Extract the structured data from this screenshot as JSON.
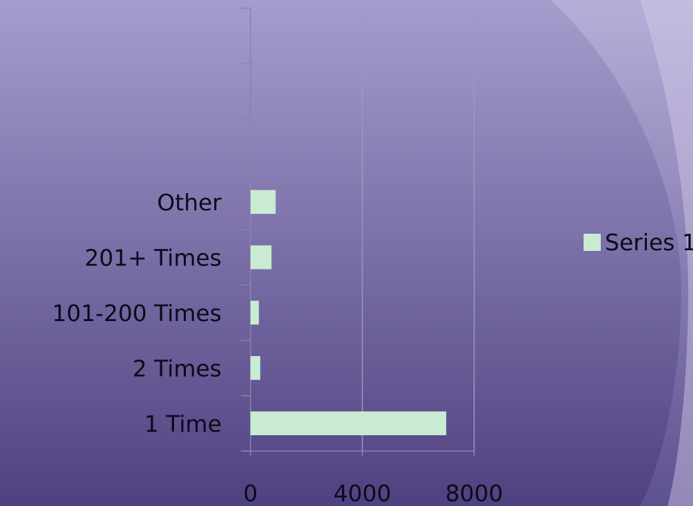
{
  "colors": {
    "bar": "#c9ebd1",
    "bg_top": "#a59ccd",
    "bg_bottom": "#4f4180",
    "axis": "#8a82ad",
    "grid": "#9d95c2"
  },
  "legend": {
    "label": "Series 1",
    "position": "right"
  },
  "chart_data": {
    "type": "bar",
    "orientation": "horizontal",
    "title": "",
    "xlabel": "",
    "ylabel": "",
    "categories": [
      "1 Time",
      "2 Times",
      "101-200 Times",
      "201+ Times",
      "Other",
      "",
      "",
      ""
    ],
    "series": [
      {
        "name": "Series 1",
        "values": [
          7000,
          350,
          300,
          750,
          900,
          null,
          null,
          null
        ]
      }
    ],
    "xlim": [
      0,
      8000
    ],
    "xticks": [
      "0",
      "4000",
      "8000"
    ],
    "grid": "vertical"
  }
}
